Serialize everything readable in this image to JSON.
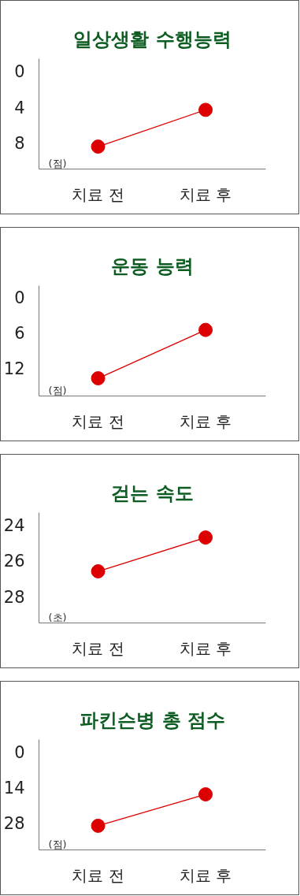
{
  "chart_data": [
    {
      "type": "line",
      "title": "일상생활 수행능력",
      "ylabel": "(점)",
      "categories": [
        "치료 전",
        "치료 후"
      ],
      "series": [
        {
          "color": "#dd0000",
          "values": [
            8.4,
            4.3
          ]
        }
      ],
      "ylim": [
        10.9,
        -1.4
      ],
      "yticks": [
        0,
        4,
        8
      ],
      "marker": "circle",
      "grid": false
    },
    {
      "type": "line",
      "title": "운동 능력",
      "ylabel": "(점)",
      "categories": [
        "치료 전",
        "치료 후"
      ],
      "series": [
        {
          "color": "#dd0000",
          "values": [
            13.7,
            5.5
          ]
        }
      ],
      "ylim": [
        16.7,
        -2
      ],
      "yticks": [
        0,
        6,
        12
      ],
      "marker": "circle",
      "grid": false
    },
    {
      "type": "line",
      "title": "걷는 속도",
      "ylabel": "(초)",
      "categories": [
        "치료 전",
        "치료 후"
      ],
      "series": [
        {
          "color": "#dd0000",
          "values": [
            26.6,
            24.7
          ]
        }
      ],
      "ylim": [
        29.5,
        23.3
      ],
      "yticks": [
        24,
        26,
        28
      ],
      "marker": "circle",
      "grid": false
    },
    {
      "type": "line",
      "title": "파킨슨병 총 점수",
      "ylabel": "(점)",
      "categories": [
        "치료 전",
        "치료 후"
      ],
      "series": [
        {
          "color": "#dd0000",
          "values": [
            29.3,
            16.8
          ]
        }
      ],
      "ylim": [
        38.9,
        -5
      ],
      "yticks": [
        0,
        14,
        28
      ],
      "marker": "circle",
      "grid": false
    }
  ]
}
